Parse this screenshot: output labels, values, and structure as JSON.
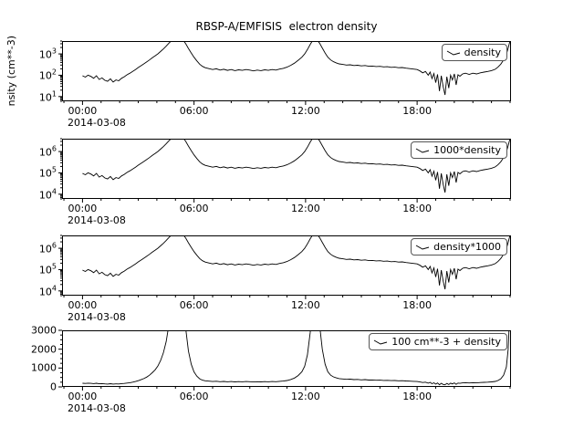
{
  "chart_data": {
    "type": "line",
    "title": "RBSP-A/EMFISIS  electron density",
    "date_label": "2014-03-08",
    "line_color": "#000000",
    "log_base": "10",
    "xlim": [
      -1.1,
      23.05
    ],
    "xticks": [
      {
        "value": 0,
        "label": "00:00"
      },
      {
        "value": 6,
        "label": "06:00"
      },
      {
        "value": 12,
        "label": "12:00"
      },
      {
        "value": 18,
        "label": "18:00"
      }
    ],
    "panels": [
      {
        "legend": "density",
        "ylabel": "nsity (cm**-3)",
        "yscale": "log",
        "ylim": [
          6,
          4000
        ],
        "yticks": [
          {
            "exp": 1
          },
          {
            "exp": 2
          },
          {
            "exp": 3
          }
        ],
        "transform": {
          "scale": 1,
          "offset": 0
        }
      },
      {
        "legend": "1000*density",
        "yscale": "log",
        "ylim": [
          6000,
          4000000
        ],
        "yticks": [
          {
            "exp": 4
          },
          {
            "exp": 5
          },
          {
            "exp": 6
          }
        ],
        "transform": {
          "scale": 1000,
          "offset": 0
        }
      },
      {
        "legend": "density*1000",
        "yscale": "log",
        "ylim": [
          6000,
          4000000
        ],
        "yticks": [
          {
            "exp": 4
          },
          {
            "exp": 5
          },
          {
            "exp": 6
          }
        ],
        "transform": {
          "scale": 1000,
          "offset": 0
        }
      },
      {
        "legend": "100 cm**-3 + density",
        "yscale": "linear",
        "ylim": [
          0,
          3000
        ],
        "minor_step": 250,
        "yticks": [
          {
            "value": 0,
            "label": "0"
          },
          {
            "value": 1000,
            "label": "1000"
          },
          {
            "value": 2000,
            "label": "2000"
          },
          {
            "value": 3000,
            "label": "3000"
          }
        ],
        "transform": {
          "scale": 1,
          "offset": 100
        }
      }
    ],
    "series_units": "hours from 2014-03-08 00:00 vs density (cm**-3)",
    "series": [
      [
        0.0,
        95
      ],
      [
        0.15,
        82
      ],
      [
        0.3,
        100
      ],
      [
        0.45,
        88
      ],
      [
        0.6,
        72
      ],
      [
        0.75,
        95
      ],
      [
        0.9,
        63
      ],
      [
        1.05,
        75
      ],
      [
        1.2,
        58
      ],
      [
        1.35,
        52
      ],
      [
        1.5,
        68
      ],
      [
        1.65,
        48
      ],
      [
        1.8,
        60
      ],
      [
        1.95,
        55
      ],
      [
        2.1,
        72
      ],
      [
        2.25,
        85
      ],
      [
        2.4,
        105
      ],
      [
        2.55,
        125
      ],
      [
        2.7,
        150
      ],
      [
        2.85,
        185
      ],
      [
        3.0,
        230
      ],
      [
        3.15,
        280
      ],
      [
        3.3,
        340
      ],
      [
        3.45,
        420
      ],
      [
        3.6,
        520
      ],
      [
        3.75,
        650
      ],
      [
        3.9,
        800
      ],
      [
        4.05,
        1000
      ],
      [
        4.2,
        1300
      ],
      [
        4.35,
        1700
      ],
      [
        4.5,
        2300
      ],
      [
        4.65,
        3200
      ],
      [
        4.8,
        4300
      ],
      [
        4.95,
        5200
      ],
      [
        5.1,
        4800
      ],
      [
        5.25,
        5200
      ],
      [
        5.4,
        4600
      ],
      [
        5.55,
        3000
      ],
      [
        5.7,
        1800
      ],
      [
        5.85,
        1100
      ],
      [
        6.0,
        700
      ],
      [
        6.15,
        470
      ],
      [
        6.3,
        330
      ],
      [
        6.45,
        260
      ],
      [
        6.6,
        225
      ],
      [
        6.8,
        205
      ],
      [
        7.0,
        185
      ],
      [
        7.2,
        200
      ],
      [
        7.4,
        175
      ],
      [
        7.6,
        190
      ],
      [
        7.8,
        170
      ],
      [
        8.0,
        185
      ],
      [
        8.2,
        165
      ],
      [
        8.4,
        180
      ],
      [
        8.6,
        170
      ],
      [
        8.8,
        185
      ],
      [
        9.0,
        175
      ],
      [
        9.2,
        160
      ],
      [
        9.4,
        175
      ],
      [
        9.6,
        165
      ],
      [
        9.8,
        180
      ],
      [
        10.0,
        170
      ],
      [
        10.2,
        185
      ],
      [
        10.4,
        175
      ],
      [
        10.6,
        195
      ],
      [
        10.8,
        210
      ],
      [
        11.0,
        240
      ],
      [
        11.2,
        290
      ],
      [
        11.4,
        370
      ],
      [
        11.6,
        500
      ],
      [
        11.8,
        700
      ],
      [
        11.95,
        1000
      ],
      [
        12.1,
        1600
      ],
      [
        12.25,
        2800
      ],
      [
        12.4,
        4500
      ],
      [
        12.5,
        5200
      ],
      [
        12.6,
        4800
      ],
      [
        12.75,
        3200
      ],
      [
        12.9,
        1900
      ],
      [
        13.05,
        1100
      ],
      [
        13.2,
        700
      ],
      [
        13.35,
        520
      ],
      [
        13.5,
        430
      ],
      [
        13.65,
        380
      ],
      [
        13.8,
        340
      ],
      [
        14.0,
        320
      ],
      [
        14.2,
        300
      ],
      [
        14.4,
        310
      ],
      [
        14.6,
        285
      ],
      [
        14.8,
        295
      ],
      [
        15.0,
        275
      ],
      [
        15.2,
        285
      ],
      [
        15.4,
        265
      ],
      [
        15.6,
        270
      ],
      [
        15.8,
        255
      ],
      [
        16.0,
        260
      ],
      [
        16.2,
        245
      ],
      [
        16.4,
        250
      ],
      [
        16.6,
        235
      ],
      [
        16.8,
        240
      ],
      [
        17.0,
        225
      ],
      [
        17.2,
        230
      ],
      [
        17.4,
        215
      ],
      [
        17.6,
        205
      ],
      [
        17.8,
        195
      ],
      [
        18.0,
        185
      ],
      [
        18.15,
        160
      ],
      [
        18.3,
        130
      ],
      [
        18.45,
        150
      ],
      [
        18.6,
        100
      ],
      [
        18.7,
        140
      ],
      [
        18.8,
        70
      ],
      [
        18.9,
        120
      ],
      [
        19.0,
        45
      ],
      [
        19.1,
        110
      ],
      [
        19.2,
        18
      ],
      [
        19.3,
        95
      ],
      [
        19.4,
        30
      ],
      [
        19.5,
        12
      ],
      [
        19.6,
        85
      ],
      [
        19.7,
        25
      ],
      [
        19.8,
        100
      ],
      [
        19.9,
        60
      ],
      [
        20.0,
        115
      ],
      [
        20.1,
        35
      ],
      [
        20.2,
        105
      ],
      [
        20.3,
        90
      ],
      [
        20.45,
        115
      ],
      [
        20.6,
        125
      ],
      [
        20.8,
        110
      ],
      [
        21.0,
        125
      ],
      [
        21.2,
        115
      ],
      [
        21.4,
        130
      ],
      [
        21.6,
        140
      ],
      [
        21.8,
        150
      ],
      [
        22.0,
        165
      ],
      [
        22.2,
        190
      ],
      [
        22.35,
        240
      ],
      [
        22.5,
        330
      ],
      [
        22.65,
        520
      ],
      [
        22.8,
        950
      ],
      [
        22.9,
        1900
      ],
      [
        23.0,
        4200
      ]
    ]
  }
}
